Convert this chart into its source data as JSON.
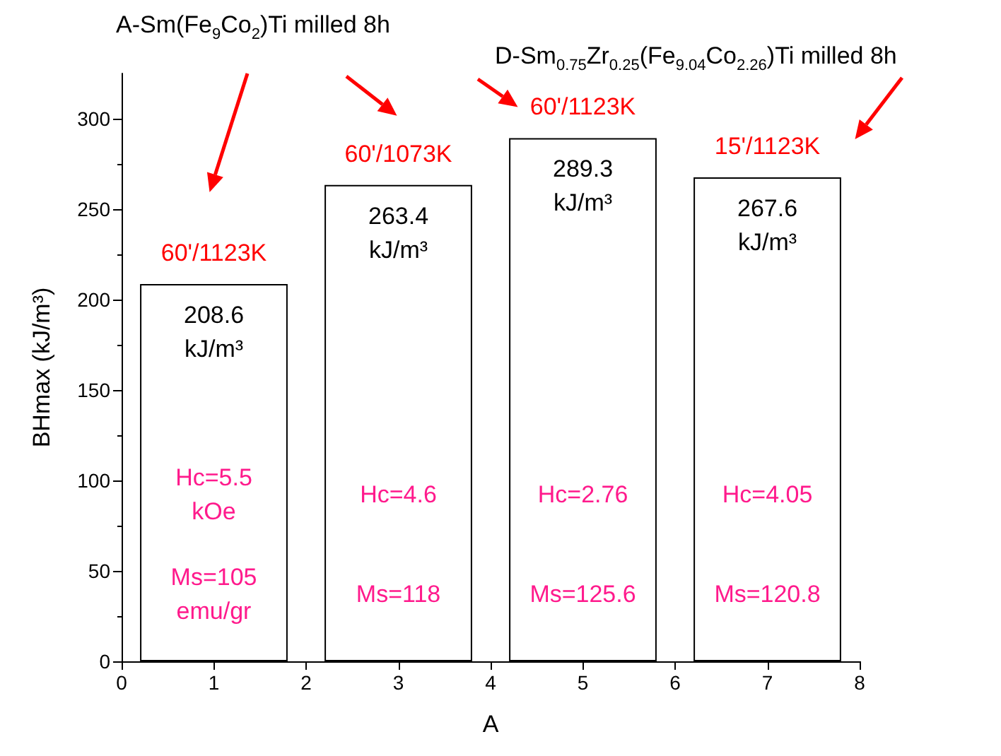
{
  "chart_data": {
    "type": "bar",
    "xlabel": "A",
    "ylabel": "BHmax (kJ/m³)",
    "x": [
      1,
      3,
      5,
      7
    ],
    "values": [
      208.6,
      263.4,
      289.3,
      267.6
    ],
    "value_labels": [
      "208.6\nkJ/m³",
      "263.4\nkJ/m³",
      "289.3\nkJ/m³",
      "267.6\nkJ/m³"
    ],
    "color": "#ffffff",
    "xlim": [
      0,
      8
    ],
    "xticks": [
      0,
      1,
      2,
      3,
      4,
      5,
      6,
      7,
      8
    ],
    "ylim": [
      0,
      325
    ],
    "yticks": [
      0,
      50,
      100,
      150,
      200,
      250,
      300
    ],
    "annotations": [
      "A-Sm(Fe$_{9}$Co$_{2}$)Ti milled 8h",
      "D-Sm$_{0.75}$Zr$_{0.25}$(Fe$_{9.04}$Co$_{2.26}$)Ti milled 8h",
      "60'/1123K",
      "60'/1073K",
      "60'/1123K",
      "15'/1123K",
      "Hc=5.5\nkOe",
      "Hc=4.6",
      "Hc=2.76",
      "Hc=4.05",
      "Ms=105\nemu/gr",
      "Ms=118",
      "Ms=125.6",
      "Ms=120.8"
    ]
  }
}
